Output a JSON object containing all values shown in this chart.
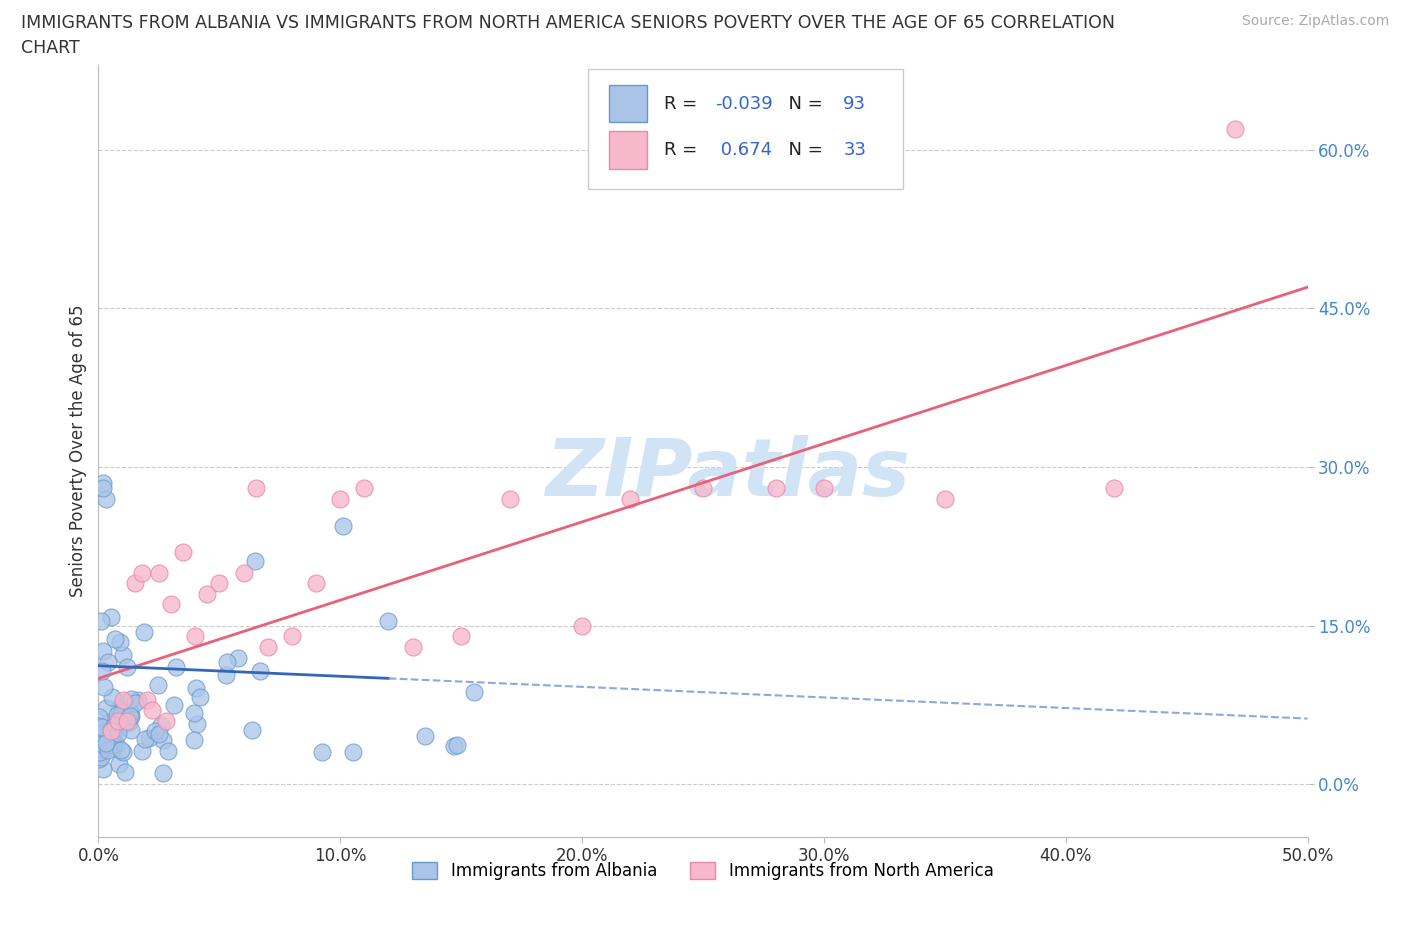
{
  "title_line1": "IMMIGRANTS FROM ALBANIA VS IMMIGRANTS FROM NORTH AMERICA SENIORS POVERTY OVER THE AGE OF 65 CORRELATION",
  "title_line2": "CHART",
  "source_text": "Source: ZipAtlas.com",
  "ylabel": "Seniors Poverty Over the Age of 65",
  "xlim": [
    0.0,
    0.5
  ],
  "ylim": [
    -0.05,
    0.68
  ],
  "yticks": [
    0.0,
    0.15,
    0.3,
    0.45,
    0.6
  ],
  "ytick_labels": [
    "0.0%",
    "15.0%",
    "30.0%",
    "45.0%",
    "60.0%"
  ],
  "xticks": [
    0.0,
    0.1,
    0.2,
    0.3,
    0.4,
    0.5
  ],
  "xtick_labels": [
    "0.0%",
    "10.0%",
    "20.0%",
    "30.0%",
    "40.0%",
    "50.0%"
  ],
  "albania_color": "#aac4e8",
  "albania_edge_color": "#6699cc",
  "north_america_color": "#f7b8cc",
  "north_america_edge_color": "#e888aa",
  "albania_R": -0.039,
  "albania_N": 93,
  "north_america_R": 0.674,
  "north_america_N": 33,
  "albania_line_color": "#3366bb",
  "albania_dash_color": "#88aadd",
  "north_america_line_color": "#e8607a",
  "watermark_text": "ZIPatlas",
  "watermark_color": "#d0e4f5",
  "legend_label_albania": "Immigrants from Albania",
  "legend_label_north_america": "Immigrants from North America",
  "grid_color": "#cccccc",
  "background_color": "#ffffff",
  "tick_color_y": "#4488cc",
  "tick_color_x": "#333333"
}
